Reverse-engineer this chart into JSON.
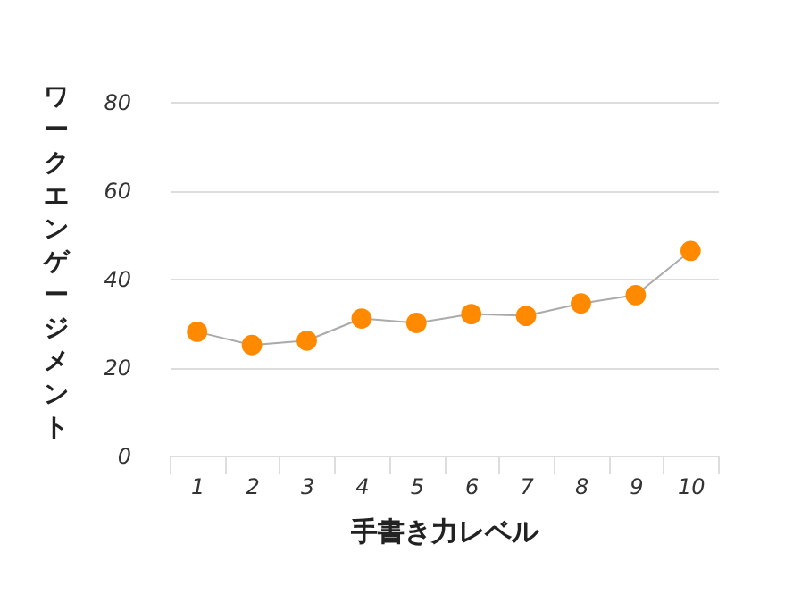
{
  "chart_data": {
    "type": "line",
    "xlabel": "手書き力レベル",
    "ylabel": "ワークエンゲージメント",
    "categories": [
      "1",
      "2",
      "3",
      "4",
      "5",
      "6",
      "7",
      "8",
      "9",
      "10"
    ],
    "series": [
      {
        "color": "#ff8a00",
        "values": [
          28,
          25,
          26,
          31,
          30,
          32,
          31.6,
          34.4,
          36.3,
          46.3
        ]
      }
    ],
    "ylim": [
      0,
      80
    ],
    "yticks": [
      0,
      20,
      40,
      60,
      80
    ],
    "grid": "y",
    "marker": "circle",
    "line_style": "solid",
    "legend": false
  }
}
